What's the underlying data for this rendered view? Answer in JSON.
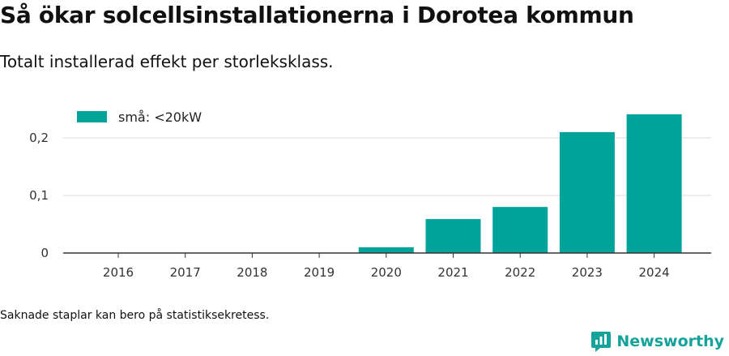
{
  "header": {
    "title": "Så ökar solcellsinstallationerna i Dorotea kommun",
    "subtitle": "Totalt installerad effekt per storleksklass."
  },
  "footer": {
    "note": "Saknade staplar kan bero på statistiksekretess.",
    "brand": "Newsworthy"
  },
  "icons": {
    "brand": "newsworthy-logo-icon"
  },
  "colors": {
    "bar": "#00a39a",
    "brand": "#14a39a",
    "grid": "#dddddd",
    "axis": "#333333"
  },
  "chart_data": {
    "type": "bar",
    "categories": [
      "2016",
      "2017",
      "2018",
      "2019",
      "2020",
      "2021",
      "2022",
      "2023",
      "2024"
    ],
    "series": [
      {
        "name": "små: <20kW",
        "values": [
          0,
          0,
          0,
          0,
          0.01,
          0.059,
          0.08,
          0.21,
          0.241
        ]
      }
    ],
    "yticks": [
      0,
      0.1,
      0.2
    ],
    "ytick_labels": [
      "0",
      "0,1",
      "0,2"
    ],
    "ylim": [
      0,
      0.25
    ],
    "grid": true,
    "legend": "top-left"
  }
}
